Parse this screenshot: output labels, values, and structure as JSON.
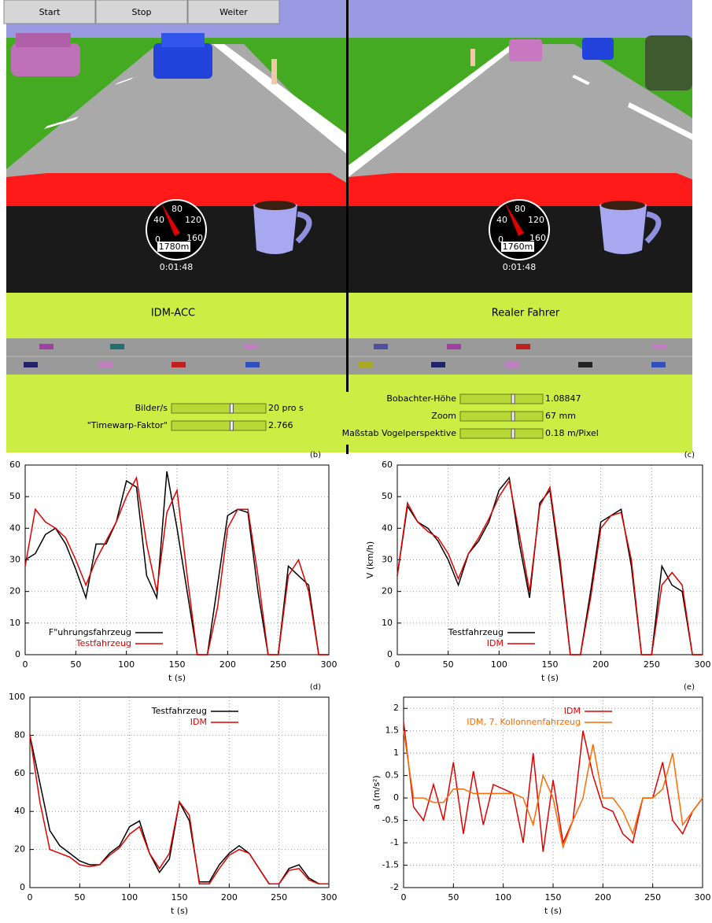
{
  "screen": {
    "buttons": [
      "Start",
      "Stop",
      "Weiter"
    ],
    "views": [
      {
        "speedo_ticks": [
          "0",
          "40",
          "80",
          "120",
          "160"
        ],
        "odometer": "1780m",
        "clock": "0:01:48",
        "label": "IDM-ACC"
      },
      {
        "speedo_ticks": [
          "0",
          "40",
          "80",
          "120",
          "160"
        ],
        "odometer": "1760m",
        "clock": "0:01:48",
        "label": "Realer Fahrer"
      }
    ],
    "controls_left": [
      {
        "label": "Bilder/s",
        "value": "20 pro s"
      },
      {
        "label": "\"Timewarp-Faktor\"",
        "value": "2.766"
      }
    ],
    "controls_right": [
      {
        "label": "Bobachter-Höhe",
        "value": "1.08847"
      },
      {
        "label": "Zoom",
        "value": "67 mm"
      },
      {
        "label": "Maßstab Vogelperspektive",
        "value": "0.18 m/Pixel"
      }
    ]
  },
  "chart_data": [
    {
      "type": "line",
      "panel_label": "(b)",
      "xlabel": "t (s)",
      "grid": true,
      "legend": "lower left",
      "x": [
        0,
        10,
        20,
        30,
        40,
        50,
        60,
        70,
        80,
        90,
        100,
        110,
        120,
        130,
        140,
        150,
        160,
        170,
        180,
        190,
        200,
        210,
        220,
        230,
        240,
        250,
        260,
        270,
        280,
        290,
        300
      ],
      "xlim": [
        0,
        300
      ],
      "xticks": [
        0,
        50,
        100,
        150,
        200,
        250,
        300
      ],
      "ylim": [
        0,
        60
      ],
      "yticks": [
        0,
        10,
        20,
        30,
        40,
        50,
        60
      ],
      "series": [
        {
          "name": "F\"uhrungsfahrzeug",
          "color": "#000000",
          "values": [
            30,
            32,
            38,
            40,
            35,
            27,
            18,
            35,
            35,
            42,
            55,
            53,
            25,
            18,
            58,
            40,
            20,
            0,
            0,
            22,
            44,
            46,
            45,
            20,
            0,
            0,
            28,
            25,
            22,
            0,
            0
          ]
        },
        {
          "name": "Testfahrzeug",
          "color": "#e00000",
          "values": [
            28,
            46,
            42,
            40,
            37,
            30,
            22,
            30,
            36,
            42,
            50,
            56,
            35,
            20,
            45,
            52,
            25,
            0,
            0,
            15,
            40,
            46,
            46,
            25,
            0,
            0,
            25,
            30,
            20,
            0,
            0
          ]
        }
      ]
    },
    {
      "type": "line",
      "panel_label": "(c)",
      "xlabel": "t (s)",
      "ylabel": "V (km/h)",
      "grid": true,
      "legend": "lower left",
      "x": [
        0,
        10,
        20,
        30,
        40,
        50,
        60,
        70,
        80,
        90,
        100,
        110,
        120,
        130,
        140,
        150,
        160,
        170,
        180,
        190,
        200,
        210,
        220,
        230,
        240,
        250,
        260,
        270,
        280,
        290,
        300
      ],
      "xlim": [
        0,
        300
      ],
      "xticks": [
        0,
        50,
        100,
        150,
        200,
        250,
        300
      ],
      "ylim": [
        0,
        60
      ],
      "yticks": [
        0,
        10,
        20,
        30,
        40,
        50,
        60
      ],
      "series": [
        {
          "name": "Testfahrzeug",
          "color": "#000000",
          "values": [
            25,
            47,
            42,
            40,
            36,
            30,
            22,
            32,
            36,
            42,
            52,
            56,
            35,
            18,
            48,
            52,
            28,
            0,
            0,
            20,
            42,
            44,
            46,
            28,
            0,
            0,
            28,
            22,
            20,
            0,
            0
          ]
        },
        {
          "name": "IDM",
          "color": "#e00000",
          "values": [
            25,
            48,
            42,
            39,
            37,
            32,
            24,
            32,
            37,
            43,
            50,
            55,
            38,
            20,
            47,
            53,
            30,
            0,
            0,
            18,
            40,
            44,
            45,
            30,
            0,
            0,
            22,
            26,
            22,
            0,
            0
          ]
        }
      ]
    },
    {
      "type": "line",
      "panel_label": "(d)",
      "xlabel": "t (s)",
      "grid": true,
      "legend": "upper center",
      "x": [
        0,
        10,
        20,
        30,
        40,
        50,
        60,
        70,
        80,
        90,
        100,
        110,
        120,
        130,
        140,
        150,
        160,
        170,
        180,
        190,
        200,
        210,
        220,
        230,
        240,
        250,
        260,
        270,
        280,
        290,
        300
      ],
      "xlim": [
        0,
        300
      ],
      "xticks": [
        0,
        50,
        100,
        150,
        200,
        250,
        300
      ],
      "ylim": [
        0,
        100
      ],
      "yticks": [
        0,
        20,
        40,
        60,
        80,
        100
      ],
      "series": [
        {
          "name": "Testfahrzeug",
          "color": "#000000",
          "values": [
            80,
            55,
            30,
            22,
            18,
            14,
            12,
            12,
            18,
            22,
            32,
            35,
            18,
            8,
            15,
            45,
            35,
            3,
            3,
            12,
            18,
            22,
            18,
            10,
            2,
            2,
            10,
            12,
            5,
            2,
            2
          ]
        },
        {
          "name": "IDM",
          "color": "#e00000",
          "values": [
            80,
            45,
            20,
            18,
            16,
            12,
            11,
            12,
            17,
            21,
            28,
            32,
            18,
            10,
            18,
            45,
            38,
            2,
            2,
            10,
            17,
            20,
            18,
            10,
            2,
            2,
            9,
            10,
            4,
            2,
            2
          ]
        }
      ]
    },
    {
      "type": "line",
      "panel_label": "(e)",
      "xlabel": "t (s)",
      "ylabel": "a (m/s²)",
      "grid": true,
      "legend": "upper center",
      "x": [
        0,
        10,
        20,
        30,
        40,
        50,
        60,
        70,
        80,
        90,
        100,
        110,
        120,
        130,
        140,
        150,
        160,
        170,
        180,
        190,
        200,
        210,
        220,
        230,
        240,
        250,
        260,
        270,
        280,
        290,
        300
      ],
      "xlim": [
        0,
        300
      ],
      "xticks": [
        0,
        50,
        100,
        150,
        200,
        250,
        300
      ],
      "ylim": [
        -2,
        2.25
      ],
      "yticks": [
        -2,
        -1.5,
        -1,
        -0.5,
        0,
        0.5,
        1,
        1.5,
        2
      ],
      "series": [
        {
          "name": "IDM",
          "color": "#e00000",
          "values": [
            1.7,
            -0.2,
            -0.5,
            0.3,
            -0.5,
            0.8,
            -0.8,
            0.6,
            -0.6,
            0.3,
            0.2,
            0.1,
            -1.0,
            1.0,
            -1.2,
            0.4,
            -1.0,
            -0.5,
            1.5,
            0.5,
            -0.2,
            -0.3,
            -0.8,
            -1.0,
            0,
            0,
            0.8,
            -0.5,
            -0.8,
            -0.3,
            0
          ]
        },
        {
          "name": "IDM, 7. Kollonnenfahrzeug",
          "color": "#ff6a00",
          "values": [
            1.5,
            0,
            0,
            -0.1,
            -0.1,
            0.2,
            0.2,
            0.1,
            0.1,
            0.1,
            0.1,
            0.1,
            0,
            -0.6,
            0.5,
            0,
            -1.1,
            -0.5,
            0,
            1.2,
            0,
            0,
            -0.3,
            -0.8,
            0,
            0,
            0.2,
            1.0,
            -0.6,
            -0.3,
            0
          ]
        }
      ]
    }
  ]
}
